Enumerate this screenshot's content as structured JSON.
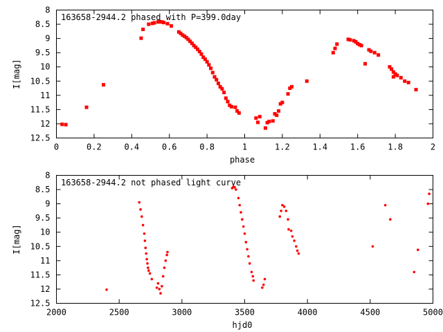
{
  "colors": {
    "marker": "#ff0000",
    "axis": "#000000",
    "background": "#ffffff"
  },
  "chart_data": [
    {
      "type": "scatter",
      "title": "163658-2944.2 phased with P=399.0day",
      "xlabel": "phase",
      "ylabel": "I[mag]",
      "xlim": [
        0,
        2
      ],
      "ylim": [
        12.5,
        8
      ],
      "y_inverted": true,
      "grid": false,
      "legend": "none",
      "xticks": [
        0,
        0.2,
        0.4,
        0.6,
        0.8,
        1,
        1.2,
        1.4,
        1.6,
        1.8,
        2
      ],
      "xtick_labels": [
        "0",
        "0.2",
        "0.4",
        "0.6",
        "0.8",
        "1",
        "1.2",
        "1.4",
        "1.6",
        "1.8",
        "2"
      ],
      "yticks": [
        8,
        8.5,
        9,
        9.5,
        10,
        10.5,
        11,
        11.5,
        12,
        12.5
      ],
      "ytick_labels": [
        "8",
        "8.5",
        "9",
        "9.5",
        "10",
        "10.5",
        "11",
        "11.5",
        "12",
        "12.5"
      ],
      "marker": "square",
      "series": [
        {
          "points": [
            [
              0.03,
              12.02
            ],
            [
              0.05,
              12.03
            ],
            [
              0.16,
              11.42
            ],
            [
              0.25,
              10.63
            ],
            [
              0.45,
              8.99
            ],
            [
              0.46,
              8.68
            ],
            [
              0.49,
              8.5
            ],
            [
              0.51,
              8.47
            ],
            [
              0.52,
              8.45
            ],
            [
              0.54,
              8.42
            ],
            [
              0.55,
              8.41
            ],
            [
              0.56,
              8.42
            ],
            [
              0.57,
              8.44
            ],
            [
              0.59,
              8.48
            ],
            [
              0.61,
              8.56
            ],
            [
              0.65,
              8.77
            ],
            [
              0.66,
              8.82
            ],
            [
              0.67,
              8.88
            ],
            [
              0.68,
              8.92
            ],
            [
              0.69,
              8.97
            ],
            [
              0.7,
              9.03
            ],
            [
              0.71,
              9.1
            ],
            [
              0.72,
              9.17
            ],
            [
              0.73,
              9.25
            ],
            [
              0.74,
              9.31
            ],
            [
              0.75,
              9.38
            ],
            [
              0.76,
              9.46
            ],
            [
              0.77,
              9.55
            ],
            [
              0.78,
              9.66
            ],
            [
              0.79,
              9.73
            ],
            [
              0.8,
              9.82
            ],
            [
              0.81,
              9.93
            ],
            [
              0.82,
              10.05
            ],
            [
              0.83,
              10.2
            ],
            [
              0.84,
              10.35
            ],
            [
              0.85,
              10.45
            ],
            [
              0.86,
              10.58
            ],
            [
              0.87,
              10.7
            ],
            [
              0.88,
              10.77
            ],
            [
              0.89,
              10.9
            ],
            [
              0.9,
              11.1
            ],
            [
              0.91,
              11.22
            ],
            [
              0.92,
              11.35
            ],
            [
              0.93,
              11.4
            ],
            [
              0.95,
              11.42
            ],
            [
              0.96,
              11.55
            ],
            [
              0.97,
              11.62
            ],
            [
              1.06,
              11.8
            ],
            [
              1.07,
              11.95
            ],
            [
              1.08,
              11.75
            ],
            [
              1.11,
              12.15
            ],
            [
              1.12,
              11.96
            ],
            [
              1.13,
              11.92
            ],
            [
              1.15,
              11.9
            ],
            [
              1.16,
              11.65
            ],
            [
              1.17,
              11.7
            ],
            [
              1.18,
              11.55
            ],
            [
              1.19,
              11.3
            ],
            [
              1.2,
              11.25
            ],
            [
              1.23,
              10.95
            ],
            [
              1.24,
              10.75
            ],
            [
              1.25,
              10.7
            ],
            [
              1.33,
              10.5
            ],
            [
              1.47,
              9.5
            ],
            [
              1.48,
              9.35
            ],
            [
              1.49,
              9.2
            ],
            [
              1.55,
              9.03
            ],
            [
              1.56,
              9.05
            ],
            [
              1.58,
              9.08
            ],
            [
              1.59,
              9.12
            ],
            [
              1.6,
              9.18
            ],
            [
              1.61,
              9.22
            ],
            [
              1.62,
              9.25
            ],
            [
              1.64,
              9.89
            ],
            [
              1.66,
              9.4
            ],
            [
              1.67,
              9.45
            ],
            [
              1.69,
              9.5
            ],
            [
              1.71,
              9.58
            ],
            [
              1.77,
              10.0
            ],
            [
              1.78,
              10.08
            ],
            [
              1.79,
              10.18
            ],
            [
              1.8,
              10.25
            ],
            [
              1.81,
              10.3
            ],
            [
              1.83,
              10.38
            ],
            [
              1.85,
              10.5
            ],
            [
              1.87,
              10.55
            ],
            [
              1.91,
              10.8
            ],
            [
              1.79,
              10.35
            ]
          ]
        }
      ]
    },
    {
      "type": "scatter",
      "title": "163658-2944.2 not phased light curve",
      "xlabel": "hjd0",
      "ylabel": "I[mag]",
      "xlim": [
        2000,
        5000
      ],
      "ylim": [
        12.5,
        8
      ],
      "y_inverted": true,
      "grid": false,
      "legend": "none",
      "xticks": [
        2000,
        2500,
        3000,
        3500,
        4000,
        4500,
        5000
      ],
      "xtick_labels": [
        "2000",
        "2500",
        "3000",
        "3500",
        "4000",
        "4500",
        "5000"
      ],
      "yticks": [
        8,
        8.5,
        9,
        9.5,
        10,
        10.5,
        11,
        11.5,
        12,
        12.5
      ],
      "ytick_labels": [
        "8",
        "8.5",
        "9",
        "9.5",
        "10",
        "10.5",
        "11",
        "11.5",
        "12",
        "12.5"
      ],
      "marker": "dot",
      "series": [
        {
          "points": [
            [
              2400,
              12.02
            ],
            [
              2660,
              8.95
            ],
            [
              2670,
              9.2
            ],
            [
              2680,
              9.45
            ],
            [
              2690,
              9.75
            ],
            [
              2700,
              10.05
            ],
            [
              2705,
              10.3
            ],
            [
              2710,
              10.55
            ],
            [
              2715,
              10.75
            ],
            [
              2720,
              10.95
            ],
            [
              2725,
              11.1
            ],
            [
              2730,
              11.25
            ],
            [
              2735,
              11.35
            ],
            [
              2745,
              11.45
            ],
            [
              2760,
              11.65
            ],
            [
              2800,
              11.95
            ],
            [
              2810,
              11.8
            ],
            [
              2820,
              12.0
            ],
            [
              2830,
              12.15
            ],
            [
              2840,
              11.9
            ],
            [
              2850,
              11.55
            ],
            [
              2860,
              11.25
            ],
            [
              2870,
              11.0
            ],
            [
              2880,
              10.8
            ],
            [
              2885,
              10.7
            ],
            [
              3400,
              8.45
            ],
            [
              3410,
              8.4
            ],
            [
              3420,
              8.42
            ],
            [
              3430,
              8.5
            ],
            [
              3450,
              8.8
            ],
            [
              3460,
              9.05
            ],
            [
              3470,
              9.3
            ],
            [
              3480,
              9.55
            ],
            [
              3490,
              9.8
            ],
            [
              3500,
              10.05
            ],
            [
              3510,
              10.35
            ],
            [
              3520,
              10.6
            ],
            [
              3530,
              10.85
            ],
            [
              3540,
              11.1
            ],
            [
              3555,
              11.4
            ],
            [
              3565,
              11.55
            ],
            [
              3570,
              11.7
            ],
            [
              3640,
              11.95
            ],
            [
              3650,
              11.85
            ],
            [
              3660,
              11.65
            ],
            [
              3780,
              9.45
            ],
            [
              3790,
              9.25
            ],
            [
              3800,
              9.05
            ],
            [
              3815,
              9.1
            ],
            [
              3830,
              9.25
            ],
            [
              3845,
              9.55
            ],
            [
              3850,
              9.9
            ],
            [
              3870,
              9.95
            ],
            [
              3880,
              10.15
            ],
            [
              3895,
              10.3
            ],
            [
              3910,
              10.5
            ],
            [
              3920,
              10.65
            ],
            [
              3930,
              10.75
            ],
            [
              4520,
              10.5
            ],
            [
              4620,
              9.05
            ],
            [
              4660,
              9.55
            ],
            [
              4850,
              11.4
            ],
            [
              4880,
              10.62
            ],
            [
              4960,
              9.0
            ],
            [
              4970,
              8.65
            ]
          ]
        }
      ]
    }
  ]
}
